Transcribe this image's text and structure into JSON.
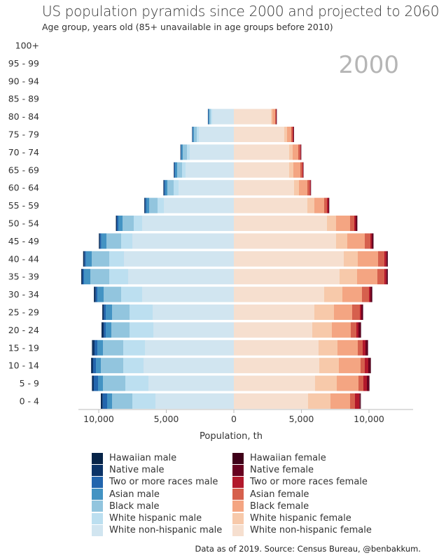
{
  "header": {
    "title": "US population pyramids since 2000 and projected to 2060",
    "subtitle": "Age group, years old (85+ unavailable in age groups before 2010)",
    "year": "2000"
  },
  "source": "Data as of 2019. Source: Census Bureau, @benbakkum.",
  "chart_data": {
    "type": "bar",
    "orientation": "horizontal-stacked-pyramid",
    "xlabel": "Population, th",
    "xlim": [
      -11600,
      13000
    ],
    "x_ticks": [
      -10000,
      -5000,
      0,
      5000,
      10000
    ],
    "x_tick_labels": [
      "10,000",
      "5,000",
      "0",
      "5,000",
      "10,000"
    ],
    "grid": false,
    "legend_position": "bottom",
    "categories": [
      "100+",
      "95 - 99",
      "90 - 94",
      "85 - 89",
      "80 - 84",
      "75 - 79",
      "70 - 74",
      "65 - 69",
      "60 - 64",
      "55 - 59",
      "50 - 54",
      "45 - 49",
      "40 - 44",
      "35 - 39",
      "30 - 34",
      "25 - 29",
      "20 - 24",
      "15 - 19",
      "10 - 14",
      "5 - 9",
      "0 - 4"
    ],
    "male_series": [
      {
        "name": "White non-hispanic male",
        "color": "#d1e5f0",
        "values": [
          0,
          0,
          0,
          0,
          1606,
          2591,
          3264,
          3575,
          4093,
          5181,
          6787,
          7512,
          8134,
          7823,
          6787,
          6010,
          5958,
          6580,
          6683,
          6321,
          5803
        ]
      },
      {
        "name": "White hispanic male",
        "color": "#bcdff0",
        "values": [
          0,
          0,
          0,
          0,
          104,
          155,
          207,
          259,
          363,
          466,
          622,
          829,
          1088,
          1399,
          1554,
          1710,
          1762,
          1606,
          1502,
          1710,
          1710
        ]
      },
      {
        "name": "Black male",
        "color": "#92c5de",
        "values": [
          0,
          0,
          0,
          0,
          104,
          207,
          311,
          363,
          466,
          622,
          829,
          1088,
          1295,
          1399,
          1295,
          1295,
          1347,
          1502,
          1658,
          1658,
          1502
        ]
      },
      {
        "name": "Asian male",
        "color": "#4393c3",
        "values": [
          0,
          0,
          0,
          0,
          52,
          86,
          104,
          155,
          155,
          207,
          311,
          380,
          432,
          466,
          466,
          466,
          414,
          414,
          363,
          363,
          363
        ]
      },
      {
        "name": "Two or more races male",
        "color": "#2265ad",
        "values": [
          0,
          0,
          0,
          0,
          35,
          35,
          35,
          52,
          86,
          86,
          104,
          104,
          104,
          104,
          121,
          138,
          138,
          207,
          207,
          311,
          328
        ]
      },
      {
        "name": "Native male",
        "color": "#0b3367",
        "values": [
          0,
          0,
          0,
          0,
          15,
          20,
          25,
          30,
          40,
          45,
          52,
          52,
          60,
          69,
          104,
          86,
          121,
          138,
          121,
          104,
          86
        ]
      },
      {
        "name": "Hawaiian male",
        "color": "#072448",
        "values": [
          0,
          0,
          0,
          0,
          5,
          5,
          10,
          10,
          15,
          20,
          25,
          30,
          40,
          35,
          35,
          35,
          52,
          52,
          35,
          35,
          52
        ]
      }
    ],
    "female_series": [
      {
        "name": "White non-hispanic female",
        "color": "#f6dfcf",
        "values": [
          0,
          0,
          0,
          0,
          2746,
          3730,
          4093,
          4093,
          4456,
          5440,
          6890,
          7564,
          8134,
          7823,
          6683,
          5958,
          5803,
          6269,
          6321,
          6010,
          5492
        ]
      },
      {
        "name": "White hispanic female",
        "color": "#f7c9aa",
        "values": [
          0,
          0,
          0,
          0,
          104,
          207,
          259,
          311,
          363,
          518,
          674,
          829,
          1036,
          1295,
          1347,
          1451,
          1451,
          1399,
          1451,
          1606,
          1658
        ]
      },
      {
        "name": "Black female",
        "color": "#f4a582",
        "values": [
          0,
          0,
          0,
          0,
          207,
          311,
          414,
          518,
          622,
          725,
          1036,
          1295,
          1502,
          1502,
          1451,
          1347,
          1399,
          1502,
          1606,
          1606,
          1451
        ]
      },
      {
        "name": "Asian female",
        "color": "#d6604d",
        "values": [
          0,
          0,
          0,
          0,
          52,
          104,
          138,
          155,
          173,
          207,
          311,
          414,
          466,
          518,
          518,
          570,
          414,
          363,
          311,
          363,
          363
        ]
      },
      {
        "name": "Two or more races female",
        "color": "#b2182b",
        "values": [
          0,
          0,
          0,
          0,
          30,
          52,
          52,
          52,
          69,
          104,
          104,
          104,
          150,
          150,
          104,
          104,
          155,
          207,
          259,
          259,
          328
        ]
      },
      {
        "name": "Native female",
        "color": "#67001f",
        "values": [
          0,
          0,
          0,
          0,
          35,
          40,
          30,
          20,
          20,
          52,
          104,
          104,
          70,
          70,
          104,
          104,
          155,
          155,
          155,
          155,
          69
        ]
      },
      {
        "name": "Hawaiian female",
        "color": "#3f0018",
        "values": [
          0,
          0,
          0,
          0,
          10,
          10,
          10,
          10,
          10,
          15,
          20,
          25,
          40,
          40,
          35,
          30,
          35,
          35,
          35,
          35,
          35
        ]
      }
    ]
  }
}
